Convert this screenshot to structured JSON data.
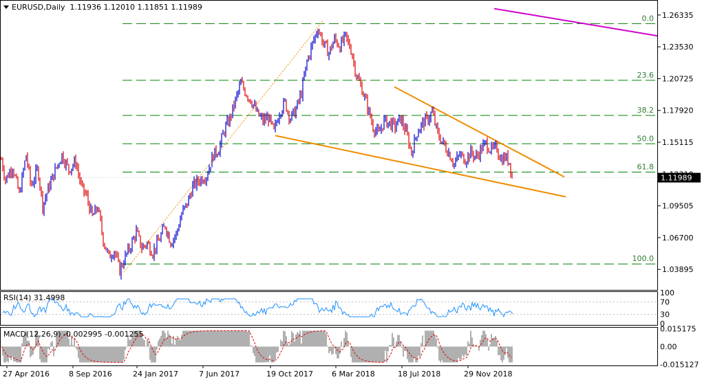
{
  "header": {
    "symbol_line": "EURUSD,Daily  1.11936 1.12010 1.11851 1.11989"
  },
  "price_badge": "1.11989",
  "rsi_label": "RSI(14) 31.4998",
  "macd_label": "MACD(12,26,9) -0.002995 -0.001255",
  "colors": {
    "bull": "#0000cc",
    "bear": "#dd0000",
    "fib": "#008000",
    "trend": "#f08c00",
    "magenta": "#cc00cc",
    "rsi": "#1e90ff",
    "macd_hist": "#b0b0b0",
    "macd_signal": "#dd0000"
  },
  "chart_data": {
    "type": "candlestick",
    "symbol": "EURUSD",
    "timeframe": "Daily",
    "last": {
      "open": 1.11936,
      "high": 1.1201,
      "low": 1.11851,
      "close": 1.11989
    },
    "x_tick_labels": [
      "27 Apr 2016",
      "8 Sep 2016",
      "24 Jan 2017",
      "7 Jun 2017",
      "19 Oct 2017",
      "6 Mar 2018",
      "18 Jul 2018",
      "29 Nov 2018"
    ],
    "y_tick_labels": [
      "1.26335",
      "1.23530",
      "1.20725",
      "1.17920",
      "1.15115",
      "1.12310",
      "1.09505",
      "1.06700",
      "1.03895"
    ],
    "ylim": [
      1.0215,
      1.276
    ],
    "price_path": [
      [
        0,
        1.142
      ],
      [
        8,
        1.118
      ],
      [
        18,
        1.13
      ],
      [
        28,
        1.105
      ],
      [
        38,
        1.14
      ],
      [
        45,
        1.112
      ],
      [
        55,
        1.128
      ],
      [
        62,
        1.095
      ],
      [
        70,
        1.11
      ],
      [
        80,
        1.126
      ],
      [
        90,
        1.14
      ],
      [
        100,
        1.127
      ],
      [
        110,
        1.134
      ],
      [
        118,
        1.112
      ],
      [
        126,
        1.103
      ],
      [
        134,
        1.085
      ],
      [
        142,
        1.094
      ],
      [
        150,
        1.065
      ],
      [
        158,
        1.05
      ],
      [
        166,
        1.056
      ],
      [
        174,
        1.038
      ],
      [
        182,
        1.05
      ],
      [
        190,
        1.06
      ],
      [
        198,
        1.072
      ],
      [
        206,
        1.058
      ],
      [
        214,
        1.062
      ],
      [
        222,
        1.054
      ],
      [
        232,
        1.066
      ],
      [
        240,
        1.078
      ],
      [
        248,
        1.063
      ],
      [
        256,
        1.07
      ],
      [
        264,
        1.088
      ],
      [
        272,
        1.097
      ],
      [
        280,
        1.112
      ],
      [
        290,
        1.118
      ],
      [
        300,
        1.122
      ],
      [
        310,
        1.14
      ],
      [
        318,
        1.145
      ],
      [
        326,
        1.162
      ],
      [
        334,
        1.172
      ],
      [
        342,
        1.188
      ],
      [
        350,
        1.203
      ],
      [
        358,
        1.194
      ],
      [
        366,
        1.187
      ],
      [
        374,
        1.176
      ],
      [
        382,
        1.17
      ],
      [
        390,
        1.173
      ],
      [
        398,
        1.16
      ],
      [
        406,
        1.178
      ],
      [
        414,
        1.186
      ],
      [
        422,
        1.172
      ],
      [
        430,
        1.18
      ],
      [
        438,
        1.195
      ],
      [
        446,
        1.222
      ],
      [
        454,
        1.238
      ],
      [
        462,
        1.252
      ],
      [
        470,
        1.238
      ],
      [
        478,
        1.23
      ],
      [
        486,
        1.242
      ],
      [
        494,
        1.236
      ],
      [
        502,
        1.244
      ],
      [
        510,
        1.233
      ],
      [
        518,
        1.21
      ],
      [
        526,
        1.198
      ],
      [
        534,
        1.182
      ],
      [
        542,
        1.165
      ],
      [
        550,
        1.158
      ],
      [
        558,
        1.17
      ],
      [
        566,
        1.168
      ],
      [
        574,
        1.165
      ],
      [
        582,
        1.172
      ],
      [
        590,
        1.16
      ],
      [
        598,
        1.142
      ],
      [
        606,
        1.16
      ],
      [
        614,
        1.168
      ],
      [
        622,
        1.172
      ],
      [
        628,
        1.178
      ],
      [
        636,
        1.158
      ],
      [
        644,
        1.15
      ],
      [
        652,
        1.142
      ],
      [
        660,
        1.132
      ],
      [
        668,
        1.14
      ],
      [
        676,
        1.136
      ],
      [
        684,
        1.142
      ],
      [
        692,
        1.138
      ],
      [
        700,
        1.146
      ],
      [
        706,
        1.15
      ],
      [
        714,
        1.144
      ],
      [
        722,
        1.146
      ],
      [
        728,
        1.136
      ],
      [
        734,
        1.138
      ],
      [
        740,
        1.134
      ],
      [
        745,
        1.1199
      ]
    ],
    "fibonacci": [
      {
        "level": "0.0",
        "price": 1.2558
      },
      {
        "level": "23.6",
        "price": 1.2058
      },
      {
        "level": "38.2",
        "price": 1.1748
      },
      {
        "level": "50.0",
        "price": 1.1498
      },
      {
        "level": "61.8",
        "price": 1.1248
      },
      {
        "level": "100.0",
        "price": 1.0438
      }
    ],
    "trendlines": [
      {
        "name": "upper-wedge",
        "from": {
          "i": 573,
          "p": 1.2
        },
        "to": {
          "i": 820,
          "p": 1.1205
        }
      },
      {
        "name": "lower-wedge",
        "from": {
          "i": 400,
          "p": 1.157
        },
        "to": {
          "i": 822,
          "p": 1.103
        }
      },
      {
        "name": "magenta-line",
        "from": {
          "i": 718,
          "p": 1.269
        },
        "to": {
          "i": 955,
          "p": 1.245
        }
      },
      {
        "name": "fib-anchor",
        "from": {
          "i": 180,
          "p": 1.0365
        },
        "to": {
          "i": 470,
          "p": 1.259
        }
      }
    ],
    "rsi": {
      "label": "RSI(14) 31.4998",
      "value": 31.4998,
      "levels": [
        70,
        30
      ],
      "axis_labels": [
        "100",
        "70",
        "30",
        "0"
      ]
    },
    "macd": {
      "label": "MACD(12,26,9) -0.002995 -0.001255",
      "main": -0.002995,
      "signal": -0.001255,
      "axis_labels": [
        "0.015175",
        "0.00",
        "-0.015127"
      ]
    }
  }
}
